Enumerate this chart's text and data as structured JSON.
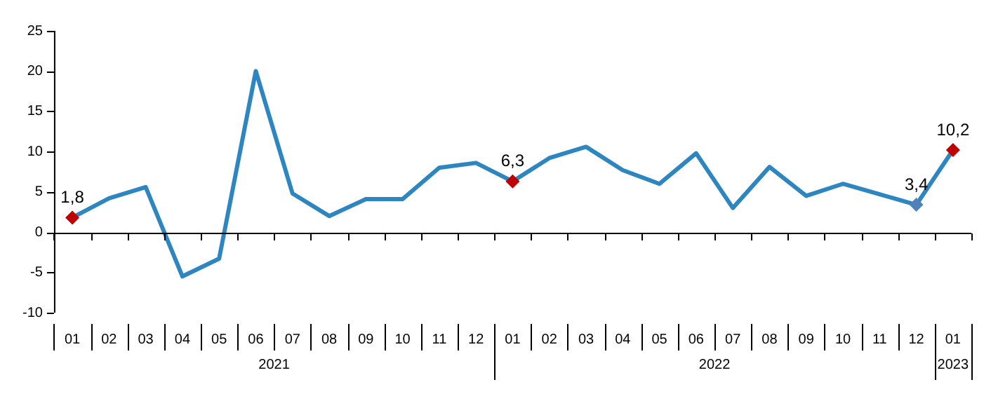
{
  "chart_data": {
    "type": "line",
    "categories": [
      "01",
      "02",
      "03",
      "04",
      "05",
      "06",
      "07",
      "08",
      "09",
      "10",
      "11",
      "12",
      "01",
      "02",
      "03",
      "04",
      "05",
      "06",
      "07",
      "08",
      "09",
      "10",
      "11",
      "12",
      "01"
    ],
    "series": [
      {
        "color": "#2e86c1",
        "values": [
          1.8,
          4.2,
          5.6,
          -5.5,
          -3.3,
          20.0,
          4.8,
          2.0,
          4.1,
          4.1,
          8.0,
          8.6,
          6.3,
          9.2,
          10.6,
          7.7,
          6.0,
          9.8,
          3.0,
          8.1,
          4.5,
          6.0,
          4.7,
          3.4,
          10.2
        ],
        "value_labels": [
          "1,8",
          null,
          null,
          null,
          null,
          null,
          null,
          null,
          null,
          null,
          null,
          null,
          "6,3",
          null,
          null,
          null,
          null,
          null,
          null,
          null,
          null,
          null,
          null,
          "3,4",
          "10,2"
        ],
        "colors": [
          "#c00000",
          null,
          null,
          null,
          null,
          null,
          null,
          null,
          null,
          null,
          null,
          null,
          "#c00000",
          null,
          null,
          null,
          null,
          null,
          null,
          null,
          null,
          null,
          null,
          "#4f81bd",
          "#c00000"
        ]
      }
    ],
    "annotations": [
      "2021",
      "2022",
      "2023"
    ],
    "ylim": [
      -10,
      25
    ],
    "yticks": [
      -10,
      -5,
      0,
      5,
      10,
      15,
      20,
      25
    ],
    "legend": false,
    "line_style": "solid"
  }
}
